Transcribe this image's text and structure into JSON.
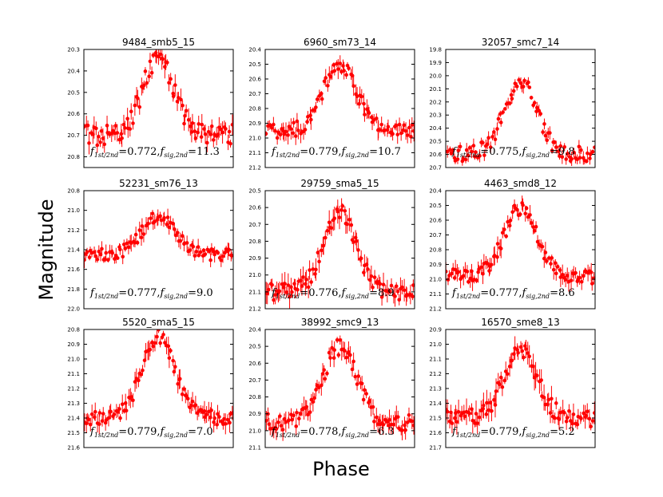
{
  "figure": {
    "xlabel": "Phase",
    "ylabel": "Magnitude",
    "marker_color": "#ff0000",
    "annotation_parts": {
      "f": "f",
      "sub1": "1st/2nd",
      "sub2": "sig,2nd",
      "eq": "=",
      "comma": ","
    }
  },
  "chart_data": [
    {
      "type": "scatter",
      "title": "9484_smb5_15",
      "ylim": [
        20.85,
        20.3
      ],
      "yticks": [
        "20.3",
        "20.4",
        "20.5",
        "20.6",
        "20.7",
        "20.8"
      ],
      "ytick_values": [
        20.3,
        20.4,
        20.5,
        20.6,
        20.7,
        20.8
      ],
      "peak": 20.35,
      "base": 20.7,
      "noise": 0.05,
      "err": 0.03,
      "ratio": "0.772",
      "sig": "11.3"
    },
    {
      "type": "scatter",
      "title": "6960_sm73_14",
      "ylim": [
        21.2,
        20.4
      ],
      "yticks": [
        "20.4",
        "20.5",
        "20.6",
        "20.7",
        "20.8",
        "20.9",
        "21.0",
        "21.1",
        "21.2"
      ],
      "ytick_values": [
        20.4,
        20.5,
        20.6,
        20.7,
        20.8,
        20.9,
        21.0,
        21.1,
        21.2
      ],
      "peak": 20.5,
      "base": 20.95,
      "noise": 0.05,
      "err": 0.04,
      "ratio": "0.779",
      "sig": "10.7"
    },
    {
      "type": "scatter",
      "title": "32057_smc7_14",
      "ylim": [
        20.7,
        19.8
      ],
      "yticks": [
        "19.8",
        "19.9",
        "20.0",
        "20.1",
        "20.2",
        "20.3",
        "20.4",
        "20.5",
        "20.6",
        "20.7"
      ],
      "ytick_values": [
        19.8,
        19.9,
        20.0,
        20.1,
        20.2,
        20.3,
        20.4,
        20.5,
        20.6,
        20.7
      ],
      "peak": 20.05,
      "base": 20.6,
      "noise": 0.06,
      "err": 0.03,
      "ratio": "0.775",
      "sig": "9.8"
    },
    {
      "type": "scatter",
      "title": "52231_sm76_13",
      "ylim": [
        22.0,
        20.8
      ],
      "yticks": [
        "20.8",
        "21.0",
        "21.2",
        "21.4",
        "21.6",
        "21.8",
        "22.0"
      ],
      "ytick_values": [
        20.8,
        21.0,
        21.2,
        21.4,
        21.6,
        21.8,
        22.0
      ],
      "peak": 21.05,
      "base": 21.45,
      "noise": 0.06,
      "err": 0.05,
      "ratio": "0.777",
      "sig": "9.0"
    },
    {
      "type": "scatter",
      "title": "29759_sma5_15",
      "ylim": [
        21.2,
        20.5
      ],
      "yticks": [
        "20.5",
        "20.6",
        "20.7",
        "20.8",
        "20.9",
        "21.0",
        "21.1",
        "21.2"
      ],
      "ytick_values": [
        20.5,
        20.6,
        20.7,
        20.8,
        20.9,
        21.0,
        21.1,
        21.2
      ],
      "peak": 20.63,
      "base": 21.1,
      "noise": 0.05,
      "err": 0.04,
      "ratio": "0.776",
      "sig": "8.9"
    },
    {
      "type": "scatter",
      "title": "4463_smd8_12",
      "ylim": [
        21.2,
        20.4
      ],
      "yticks": [
        "20.4",
        "20.5",
        "20.6",
        "20.7",
        "20.8",
        "20.9",
        "21.0",
        "21.1",
        "21.2"
      ],
      "ytick_values": [
        20.4,
        20.5,
        20.6,
        20.7,
        20.8,
        20.9,
        21.0,
        21.1,
        21.2
      ],
      "peak": 20.52,
      "base": 20.98,
      "noise": 0.05,
      "err": 0.04,
      "ratio": "0.777",
      "sig": "8.6"
    },
    {
      "type": "scatter",
      "title": "5520_sma5_15",
      "ylim": [
        21.6,
        20.8
      ],
      "yticks": [
        "20.8",
        "20.9",
        "21.0",
        "21.1",
        "21.2",
        "21.3",
        "21.4",
        "21.5",
        "21.6"
      ],
      "ytick_values": [
        20.8,
        20.9,
        21.0,
        21.1,
        21.2,
        21.3,
        21.4,
        21.5,
        21.6
      ],
      "peak": 20.85,
      "base": 21.4,
      "noise": 0.05,
      "err": 0.04,
      "ratio": "0.779",
      "sig": "7.0"
    },
    {
      "type": "scatter",
      "title": "38992_smc9_13",
      "ylim": [
        21.1,
        20.4
      ],
      "yticks": [
        "20.4",
        "20.5",
        "20.6",
        "20.7",
        "20.8",
        "20.9",
        "21.0",
        "21.1"
      ],
      "ytick_values": [
        20.4,
        20.5,
        20.6,
        20.7,
        20.8,
        20.9,
        21.0,
        21.1
      ],
      "peak": 20.5,
      "base": 20.95,
      "noise": 0.05,
      "err": 0.04,
      "ratio": "0.778",
      "sig": "6.3"
    },
    {
      "type": "scatter",
      "title": "16570_sme8_13",
      "ylim": [
        21.7,
        20.9
      ],
      "yticks": [
        "20.9",
        "21.0",
        "21.1",
        "21.2",
        "21.3",
        "21.4",
        "21.5",
        "21.6",
        "21.7"
      ],
      "ytick_values": [
        20.9,
        21.0,
        21.1,
        21.2,
        21.3,
        21.4,
        21.5,
        21.6,
        21.7
      ],
      "peak": 21.05,
      "base": 21.5,
      "noise": 0.06,
      "err": 0.05,
      "ratio": "0.779",
      "sig": "5.2"
    }
  ]
}
